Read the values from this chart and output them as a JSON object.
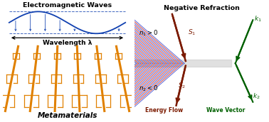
{
  "title_left": "Electromagnetic Waves",
  "title_right": "Negative Refraction",
  "label_wavelength": "Wavelength λ",
  "label_metamaterials": "Metamaterials",
  "label_n1": "$n_1 > 0$",
  "label_n2": "$n_2 < 0$",
  "label_S1": "$S_1$",
  "label_S2": "$S_2$",
  "label_k1": "$k_1$",
  "label_k2": "$k_2$",
  "label_energy": "Energy Flow",
  "label_wave": "Wave Vector",
  "color_wave": "#1040b0",
  "color_orange": "#e08000",
  "color_energy": "#7B1A00",
  "color_vector": "#006000",
  "color_red_stripe": "#cc1100",
  "color_blue_stripe": "#2233cc",
  "color_interface": "#c8c8c8",
  "bg_color": "#ffffff"
}
